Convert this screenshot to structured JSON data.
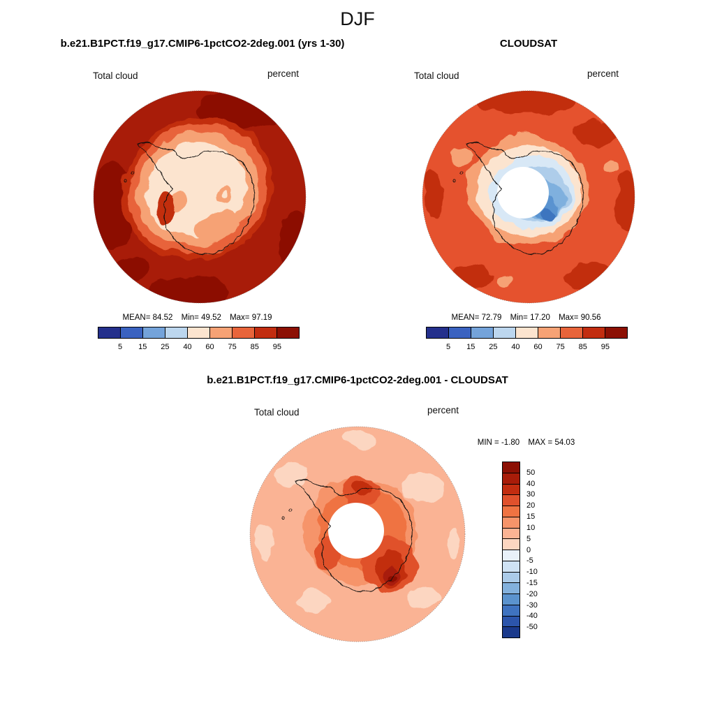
{
  "page_title": "DJF",
  "panels": {
    "model": {
      "title": "b.e21.B1PCT.f19_g17.CMIP6-1pctCO2-2deg.001 (yrs 1-30)",
      "field_label": "Total cloud",
      "units_label": "percent",
      "stats": {
        "mean_label": "MEAN=",
        "mean": "84.52",
        "min_label": "Min=",
        "min": "49.52",
        "max_label": "Max=",
        "max": "97.19"
      }
    },
    "obs": {
      "title": "CLOUDSAT",
      "field_label": "Total cloud",
      "units_label": "percent",
      "stats": {
        "mean_label": "MEAN=",
        "mean": "72.79",
        "min_label": "Min=",
        "min": "17.20",
        "max_label": "Max=",
        "max": "90.56"
      }
    },
    "diff": {
      "title": "b.e21.B1PCT.f19_g17.CMIP6-1pctCO2-2deg.001 - CLOUDSAT",
      "field_label": "Total cloud",
      "units_label": "percent",
      "stats": {
        "min_label": "MIN =",
        "min": "-1.80",
        "max_label": "MAX =",
        "max": "54.03"
      }
    }
  },
  "colorbar_main": {
    "tick_labels": [
      "5",
      "15",
      "25",
      "40",
      "60",
      "75",
      "85",
      "95"
    ],
    "colors": [
      "#24308c",
      "#3a62c0",
      "#74a3da",
      "#bcd6ee",
      "#fce4cf",
      "#f6a275",
      "#e8643a",
      "#c22d10",
      "#8c1004"
    ]
  },
  "colorbar_diff": {
    "tick_labels": [
      "50",
      "40",
      "30",
      "20",
      "15",
      "10",
      "5",
      "0",
      "-5",
      "-10",
      "-15",
      "-20",
      "-30",
      "-40",
      "-50"
    ],
    "colors": [
      "#8c1004",
      "#a81c09",
      "#c22d10",
      "#e0512c",
      "#ef7342",
      "#f6946a",
      "#fab394",
      "#fcd6c1",
      "#e9f1f9",
      "#cfe2f4",
      "#abcbe9",
      "#83b1dd",
      "#5b93ce",
      "#3f73c0",
      "#2c55ab",
      "#1b3a8c"
    ]
  },
  "chart_data": [
    {
      "type": "heatmap",
      "subtype": "south-polar-stereographic-contour-map",
      "region": "Antarctica / Southern Ocean",
      "season": "DJF",
      "title": "b.e21.B1PCT.f19_g17.CMIP6-1pctCO2-2deg.001 (yrs 1-30)",
      "variable": "Total cloud",
      "units": "percent",
      "stats": {
        "mean": 84.52,
        "min": 49.52,
        "max": 97.19
      },
      "contour_levels": [
        5,
        15,
        25,
        40,
        60,
        75,
        85,
        95
      ],
      "palette": "blue-to-dark-red, 9 classes",
      "legend_position": "bottom",
      "pattern": "Cloud fraction above 85% (dark red) over the entire Southern Ocean ring, decreasing through orange bands to 40-60% (pale cream) over the Antarctic continental interior; Antarctic coastline overlaid in black"
    },
    {
      "type": "heatmap",
      "subtype": "south-polar-stereographic-contour-map",
      "region": "Antarctica / Southern Ocean",
      "season": "DJF",
      "title": "CLOUDSAT",
      "variable": "Total cloud",
      "units": "percent",
      "stats": {
        "mean": 72.79,
        "min": 17.2,
        "max": 90.56
      },
      "contour_levels": [
        5,
        15,
        25,
        40,
        60,
        75,
        85,
        95
      ],
      "palette": "blue-to-dark-red, 9 classes",
      "legend_position": "bottom",
      "pattern": "Cloud fraction 75-90% (orange-red) over the Southern Ocean, dropping to 15-40% (light to medium blue) over the East Antarctic interior; white circular data gap centered on the pole; Antarctic coastline overlaid in black"
    },
    {
      "type": "heatmap",
      "subtype": "south-polar-stereographic-contour-map",
      "region": "Antarctica / Southern Ocean",
      "season": "DJF",
      "title": "b.e21.B1PCT.f19_g17.CMIP6-1pctCO2-2deg.001 - CLOUDSAT",
      "variable": "Total cloud difference (model minus CLOUDSAT)",
      "units": "percent",
      "stats": {
        "min": -1.8,
        "max": 54.03
      },
      "contour_levels": [
        -50,
        -40,
        -30,
        -20,
        -15,
        -10,
        -5,
        0,
        5,
        10,
        15,
        20,
        30,
        40,
        50
      ],
      "palette": "diverging blue-to-red, 16 classes",
      "legend_position": "right",
      "pattern": "Positive bias almost everywhere: +5 to +15% (light salmon) over the ocean, strongest +20 to +54% (red to dark red) over the Antarctic interior adjacent to the polar data-gap circle; white circular data gap at the pole"
    }
  ]
}
